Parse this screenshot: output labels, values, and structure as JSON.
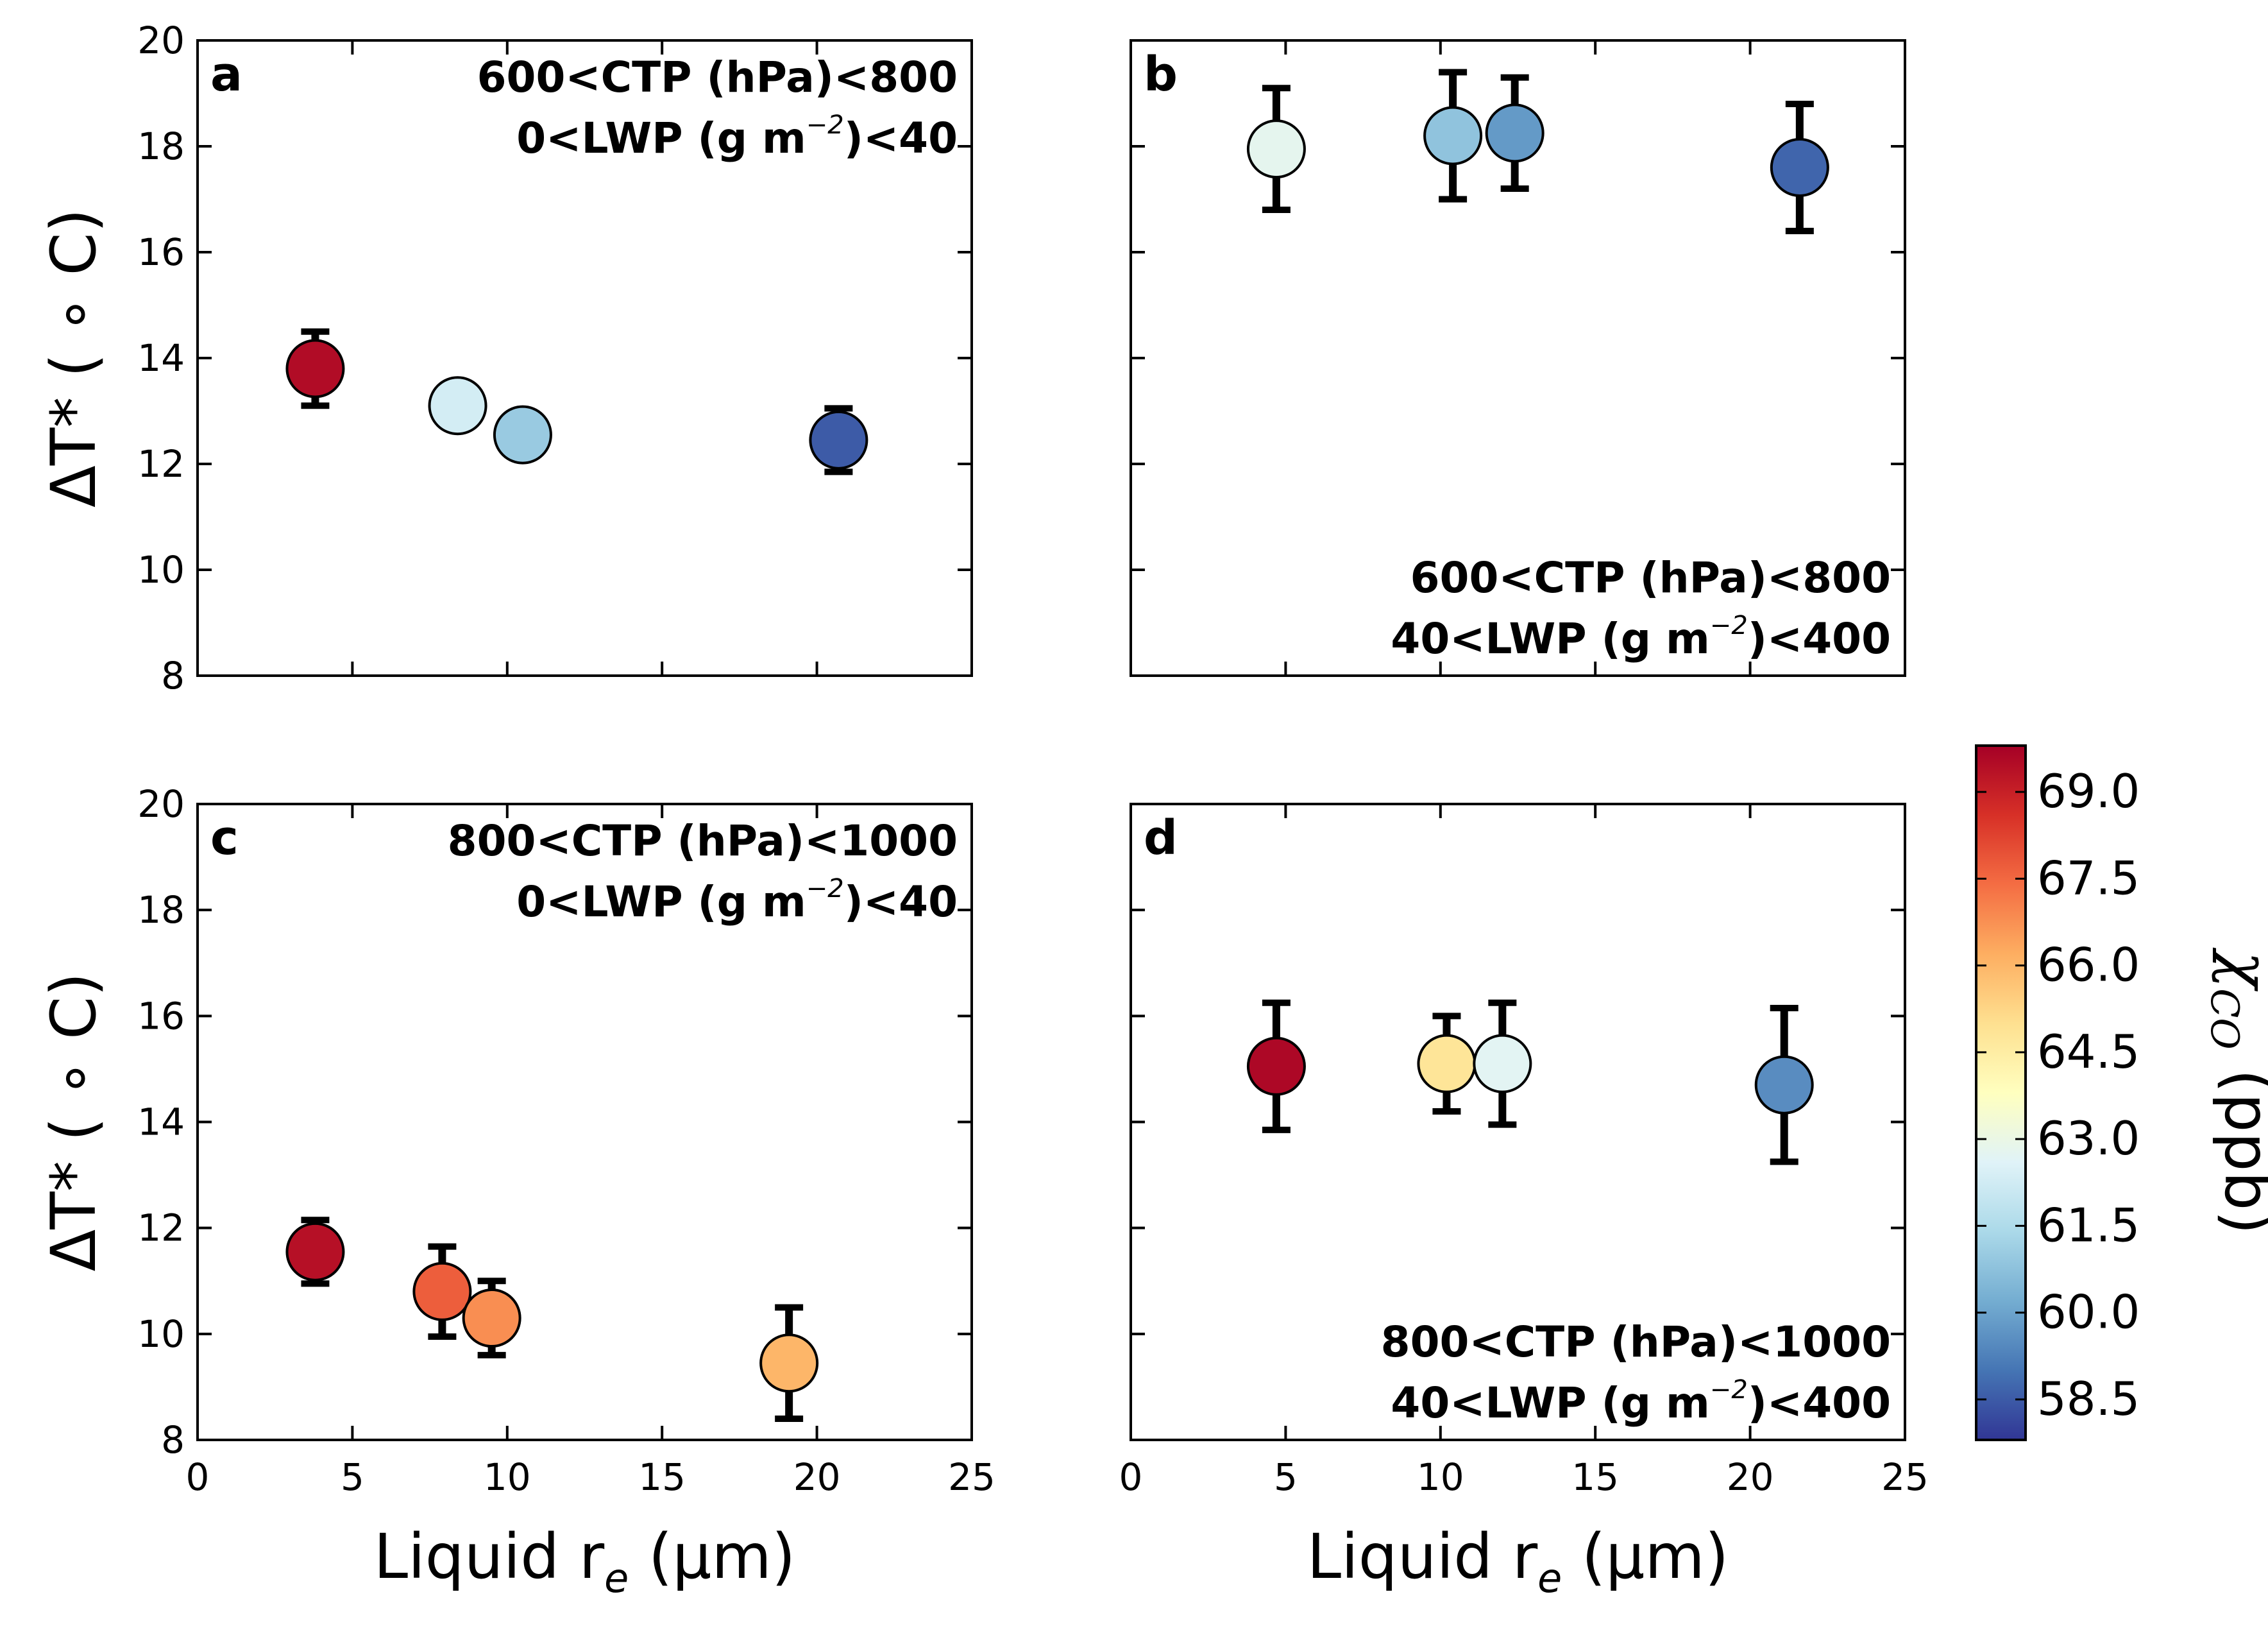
{
  "colormap": {
    "name": "RdYlBu_r",
    "stops": [
      "#313695",
      "#4575b4",
      "#74add1",
      "#abd9e9",
      "#e0f3f8",
      "#ffffbf",
      "#fee090",
      "#fdae61",
      "#f46d43",
      "#d73027",
      "#a50026"
    ]
  },
  "chart_data": [
    {
      "type": "scatter",
      "panel": "a",
      "annotation": [
        "600<CTP (hPa)<800",
        "0<LWP (g m",
        "−2",
        ")<40"
      ],
      "annotation_position": "top-right",
      "xlabel": "",
      "ylabel_main": "ΔT*",
      "ylabel_unit": " ( ∘ C)",
      "xlim": [
        0,
        25
      ],
      "ylim": [
        8,
        20
      ],
      "xticks": [],
      "yticks": [
        "8",
        "10",
        "12",
        "14",
        "16",
        "18",
        "20"
      ],
      "points": [
        {
          "x": 3.8,
          "y": 13.8,
          "err": 0.7,
          "co": 69.5
        },
        {
          "x": 8.4,
          "y": 13.1,
          "err": 0.0,
          "co": 62.3
        },
        {
          "x": 10.5,
          "y": 12.55,
          "err": 0.0,
          "co": 61.0
        },
        {
          "x": 20.7,
          "y": 12.45,
          "err": 0.6,
          "co": 58.5
        }
      ]
    },
    {
      "type": "scatter",
      "panel": "b",
      "annotation": [
        "600<CTP (hPa)<800",
        "40<LWP (g m",
        "−2",
        ")<400"
      ],
      "annotation_position": "bottom-right",
      "xlabel": "",
      "ylabel_main": "",
      "ylabel_unit": "",
      "xlim": [
        0,
        25
      ],
      "ylim": [
        8,
        20
      ],
      "xticks": [],
      "yticks": [],
      "points": [
        {
          "x": 4.7,
          "y": 17.95,
          "err": 1.15,
          "co": 62.8
        },
        {
          "x": 10.4,
          "y": 18.2,
          "err": 1.2,
          "co": 60.8
        },
        {
          "x": 12.4,
          "y": 18.25,
          "err": 1.05,
          "co": 59.8
        },
        {
          "x": 21.6,
          "y": 17.6,
          "err": 1.2,
          "co": 58.7
        }
      ]
    },
    {
      "type": "scatter",
      "panel": "c",
      "annotation": [
        "800<CTP (hPa)<1000",
        "0<LWP (g m",
        "−2",
        ")<40"
      ],
      "annotation_position": "top-right",
      "xlabel_main": "Liquid r",
      "xlabel_sub": "e",
      "xlabel_unit": " (µm)",
      "ylabel_main": "ΔT*",
      "ylabel_unit": " ( ∘ C)",
      "xlim": [
        0,
        25
      ],
      "ylim": [
        8,
        20
      ],
      "xticks": [
        "0",
        "5",
        "10",
        "15",
        "20",
        "25"
      ],
      "yticks": [
        "8",
        "10",
        "12",
        "14",
        "16",
        "18",
        "20"
      ],
      "points": [
        {
          "x": 3.8,
          "y": 11.55,
          "err": 0.6,
          "co": 69.4
        },
        {
          "x": 7.9,
          "y": 10.8,
          "err": 0.85,
          "co": 67.7
        },
        {
          "x": 9.5,
          "y": 10.3,
          "err": 0.7,
          "co": 66.8
        },
        {
          "x": 19.1,
          "y": 9.45,
          "err": 1.05,
          "co": 66.0
        }
      ]
    },
    {
      "type": "scatter",
      "panel": "d",
      "annotation": [
        "800<CTP (hPa)<1000",
        "40<LWP (g m",
        "−2",
        ")<400"
      ],
      "annotation_position": "bottom-right",
      "xlabel_main": "Liquid r",
      "xlabel_sub": "e",
      "xlabel_unit": " (µm)",
      "ylabel_main": "",
      "ylabel_unit": "",
      "xlim": [
        0,
        25
      ],
      "ylim": [
        8,
        20
      ],
      "xticks": [
        "0",
        "5",
        "10",
        "15",
        "20",
        "25"
      ],
      "yticks": [],
      "points": [
        {
          "x": 4.7,
          "y": 15.05,
          "err": 1.2,
          "co": 69.6
        },
        {
          "x": 10.2,
          "y": 15.1,
          "err": 0.9,
          "co": 64.8
        },
        {
          "x": 12.0,
          "y": 15.1,
          "err": 1.15,
          "co": 62.7
        },
        {
          "x": 21.1,
          "y": 14.7,
          "err": 1.45,
          "co": 59.5
        }
      ]
    }
  ],
  "colorbar": {
    "label_main": "χ",
    "label_sub": "CO",
    "label_unit": " (ppb)",
    "vmin": 57.8,
    "vmax": 69.8,
    "ticks": [
      58.5,
      60.0,
      61.5,
      63.0,
      64.5,
      66.0,
      67.5,
      69.0
    ],
    "tick_labels": [
      "58.5",
      "60.0",
      "61.5",
      "63.0",
      "64.5",
      "66.0",
      "67.5",
      "69.0"
    ]
  }
}
